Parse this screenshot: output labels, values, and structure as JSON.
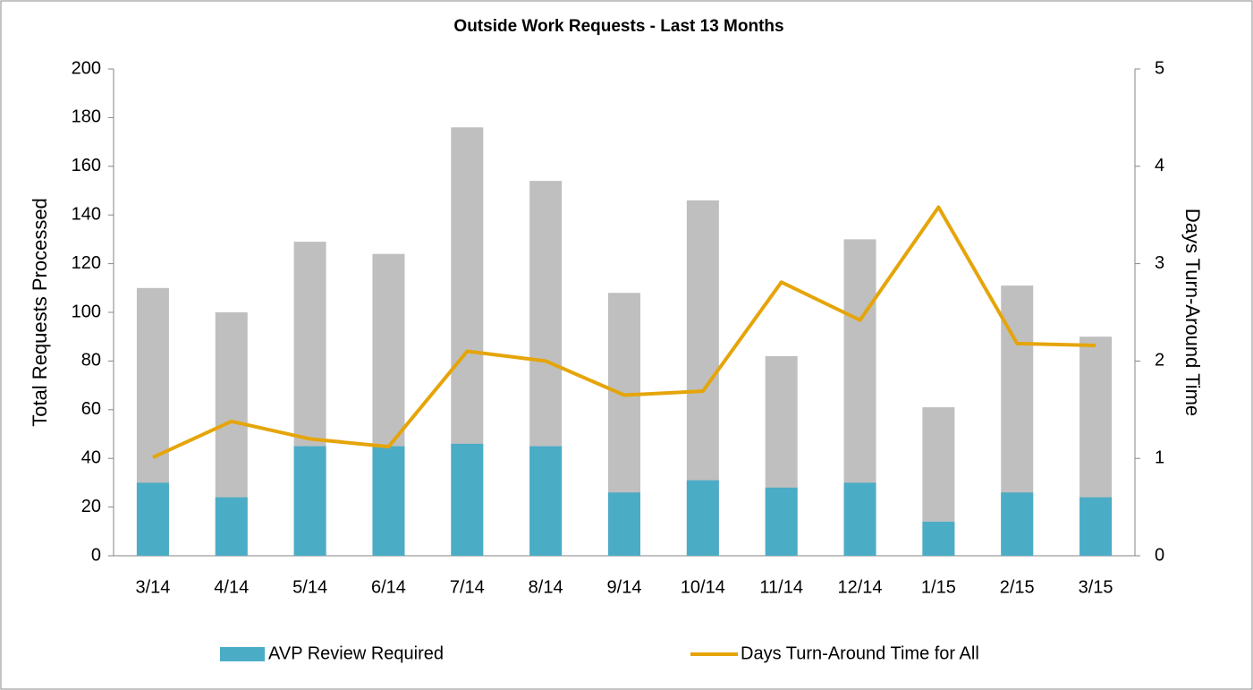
{
  "chart_data": {
    "type": "bar",
    "title": "Outside Work Requests - Last 13 Months",
    "ylabel": "Total Requests  Processed",
    "y2label": "Days Turn-Around Time",
    "categories": [
      "3/14",
      "4/14",
      "5/14",
      "6/14",
      "7/14",
      "8/14",
      "9/14",
      "10/14",
      "11/14",
      "12/14",
      "1/15",
      "2/15",
      "3/15"
    ],
    "series": [
      {
        "color": "#bfbfbf",
        "values": [
          110,
          100,
          129,
          124,
          176,
          154,
          108,
          146,
          82,
          130,
          61,
          111,
          90
        ]
      },
      {
        "name": "AVP Review Required",
        "color": "#4bacc6",
        "values": [
          30,
          24,
          45,
          45,
          46,
          45,
          26,
          31,
          28,
          30,
          14,
          26,
          24
        ]
      },
      {
        "name": "Days Turn-Around Time for All",
        "type": "line",
        "axis": "y2",
        "color": "#e5a50a",
        "values": [
          1.01,
          1.38,
          1.2,
          1.12,
          2.1,
          2.0,
          1.65,
          1.69,
          2.81,
          2.42,
          3.58,
          2.18,
          2.16
        ]
      }
    ],
    "ylim": [
      0,
      200
    ],
    "yticks": [
      0,
      20,
      40,
      60,
      80,
      100,
      120,
      140,
      160,
      180,
      200
    ],
    "y2lim": [
      0,
      5
    ],
    "y2ticks": [
      0,
      1,
      2,
      3,
      4,
      5
    ],
    "grid": false,
    "legend": "bottom"
  }
}
